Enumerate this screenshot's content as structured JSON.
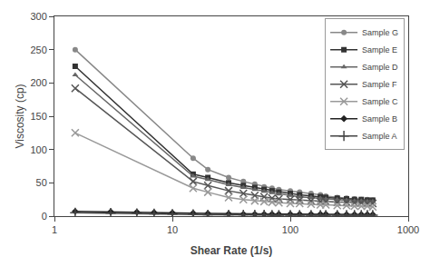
{
  "chart_data": {
    "type": "line",
    "xlabel": "Shear Rate (1/s)",
    "ylabel": "Viscosity (cp)",
    "log": "x",
    "xlim": [
      1,
      1000
    ],
    "ylim": [
      0,
      300
    ],
    "xticks": [
      1,
      10,
      100,
      1000
    ],
    "yticks": [
      0,
      50,
      100,
      150,
      200,
      250,
      300
    ],
    "grid": false,
    "legend": "upper right",
    "series": [
      {
        "name": "Sample G",
        "color": "#888888",
        "marker": "circle",
        "x": [
          1.5,
          15,
          20,
          30,
          40,
          50,
          60,
          70,
          80,
          100,
          120,
          150,
          180,
          200,
          250,
          300,
          350,
          400,
          450,
          500
        ],
        "values": [
          250,
          87,
          70,
          58,
          52,
          48,
          44,
          42,
          40,
          38,
          36,
          34,
          32,
          30,
          28,
          27,
          26,
          25,
          25,
          24
        ]
      },
      {
        "name": "Sample E",
        "color": "#333333",
        "marker": "square",
        "x": [
          1.5,
          15,
          20,
          30,
          40,
          50,
          60,
          70,
          80,
          100,
          120,
          150,
          180,
          200,
          250,
          300,
          350,
          400,
          450,
          500
        ],
        "values": [
          225,
          63,
          58,
          50,
          46,
          43,
          40,
          38,
          36,
          34,
          32,
          30,
          29,
          28,
          27,
          26,
          25,
          25,
          24,
          24
        ]
      },
      {
        "name": "Sample D",
        "color": "#666666",
        "marker": "triangle",
        "x": [
          1.5,
          15,
          20,
          30,
          40,
          50,
          60,
          70,
          80,
          100,
          120,
          150,
          180,
          200,
          250,
          300,
          350,
          400,
          450,
          500
        ],
        "values": [
          212,
          60,
          55,
          47,
          43,
          40,
          37,
          35,
          33,
          31,
          29,
          28,
          27,
          26,
          25,
          24,
          23,
          23,
          22,
          22
        ]
      },
      {
        "name": "Sample F",
        "color": "#555555",
        "marker": "x",
        "x": [
          1.5,
          15,
          20,
          30,
          40,
          50,
          60,
          70,
          80,
          100,
          120,
          150,
          180,
          200,
          250,
          300,
          350,
          400,
          450,
          500
        ],
        "values": [
          192,
          52,
          46,
          38,
          34,
          31,
          29,
          27,
          26,
          25,
          24,
          23,
          22,
          22,
          21,
          21,
          20,
          20,
          19,
          19
        ]
      },
      {
        "name": "Sample C",
        "color": "#999999",
        "marker": "x",
        "x": [
          1.5,
          15,
          20,
          30,
          40,
          50,
          60,
          70,
          80,
          100,
          120,
          150,
          180,
          200,
          250,
          300,
          350,
          400,
          450,
          500
        ],
        "values": [
          125,
          42,
          36,
          28,
          25,
          23,
          22,
          21,
          20,
          19,
          19,
          18,
          17,
          17,
          16,
          16,
          15,
          15,
          15,
          14
        ]
      },
      {
        "name": "Sample B",
        "color": "#222222",
        "marker": "diamond",
        "x": [
          1.5,
          3,
          5,
          7,
          10,
          15,
          20,
          30,
          40,
          50,
          60,
          70,
          80,
          100,
          120,
          150,
          180,
          200,
          250,
          300,
          350,
          400,
          450,
          500
        ],
        "values": [
          7,
          6.5,
          6,
          5.5,
          5,
          4.5,
          4,
          3.5,
          3,
          3,
          3,
          3,
          3,
          3,
          3,
          3,
          3,
          3,
          3,
          2.5,
          2.5,
          2.5,
          2.5,
          2.5
        ]
      },
      {
        "name": "Sample A",
        "color": "#444444",
        "marker": "plus",
        "x": [
          1.5,
          3,
          5,
          7,
          10,
          15,
          20,
          30,
          40,
          50,
          60,
          70,
          80,
          100,
          120,
          150,
          180,
          200,
          250,
          300,
          350,
          400,
          450,
          500
        ],
        "values": [
          5,
          4.5,
          4,
          3.5,
          3,
          2.5,
          2,
          2,
          2,
          2,
          2,
          1.5,
          1.5,
          1.5,
          1.5,
          1.5,
          1.5,
          1.5,
          1.5,
          1.5,
          1.5,
          1.5,
          1.5,
          1.5
        ]
      }
    ]
  }
}
